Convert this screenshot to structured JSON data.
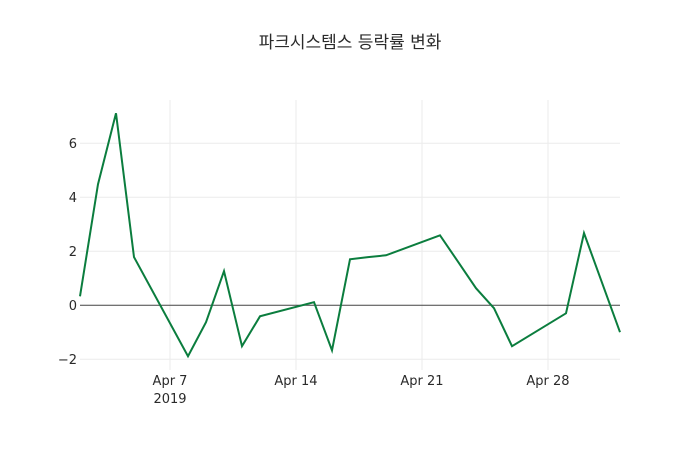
{
  "chart_data": {
    "type": "line",
    "title": "파크시스템스 등락률 변화",
    "xlabel": "",
    "ylabel": "",
    "x": [
      "2019-04-02",
      "2019-04-03",
      "2019-04-04",
      "2019-04-05",
      "2019-04-08",
      "2019-04-09",
      "2019-04-10",
      "2019-04-11",
      "2019-04-12",
      "2019-04-15",
      "2019-04-16",
      "2019-04-17",
      "2019-04-18",
      "2019-04-19",
      "2019-04-22",
      "2019-04-23",
      "2019-04-24",
      "2019-04-25",
      "2019-04-26",
      "2019-04-29",
      "2019-04-30",
      "2019-05-02"
    ],
    "series": [
      {
        "name": "등락률",
        "color": "#0b7d3e",
        "values": [
          0.33,
          4.48,
          7.11,
          1.78,
          -1.89,
          -0.63,
          1.26,
          -1.52,
          -0.41,
          0.11,
          -1.67,
          1.7,
          1.78,
          1.85,
          2.59,
          1.61,
          0.63,
          -0.11,
          -1.52,
          -0.3,
          2.67,
          -1.0
        ]
      }
    ],
    "xlim": [
      "2019-04-02",
      "2019-05-02"
    ],
    "ylim": [
      -2.4,
      7.6
    ],
    "x_ticks": [
      {
        "date": "2019-04-07",
        "label": "Apr 7",
        "sublabel": "2019"
      },
      {
        "date": "2019-04-14",
        "label": "Apr 14",
        "sublabel": ""
      },
      {
        "date": "2019-04-21",
        "label": "Apr 21",
        "sublabel": ""
      },
      {
        "date": "2019-04-28",
        "label": "Apr 28",
        "sublabel": ""
      }
    ],
    "y_ticks": [
      {
        "value": -2,
        "label": "−2"
      },
      {
        "value": 0,
        "label": "0"
      },
      {
        "value": 2,
        "label": "2"
      },
      {
        "value": 4,
        "label": "4"
      },
      {
        "value": 6,
        "label": "6"
      }
    ],
    "grid": true,
    "zero_line": true,
    "legend": "none"
  },
  "colors": {
    "line": "#0b7d3e",
    "grid": "#ebebeb",
    "zero_line": "#444444",
    "text": "#2a2a2a",
    "background": "#ffffff"
  }
}
